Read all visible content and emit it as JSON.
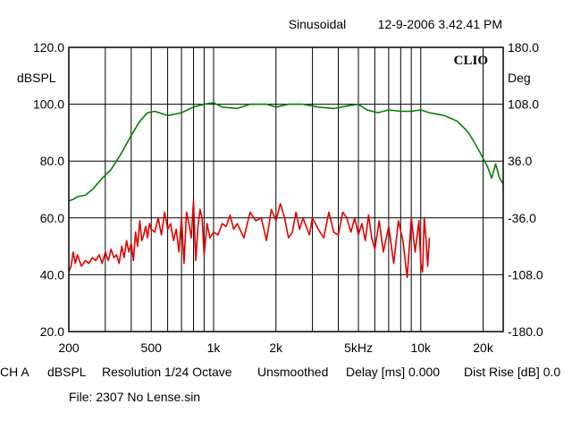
{
  "header": {
    "mode": "Sinusoidal",
    "timestamp": "12-9-2006 3.42.41 PM"
  },
  "chart_data": {
    "type": "line",
    "brand": "CLIO",
    "left_axis": {
      "unit": "dBSPL",
      "ylim": [
        20,
        120
      ],
      "ticks": [
        "120.0",
        "100.0",
        "80.0",
        "60.0",
        "40.0",
        "20.0"
      ],
      "tick_values": [
        120,
        100,
        80,
        60,
        40,
        20
      ]
    },
    "right_axis": {
      "unit": "Deg",
      "ylim": [
        -180,
        180
      ],
      "ticks": [
        "180.0",
        "108.0",
        "36.0",
        "-36.0",
        "-108.0",
        "-180.0"
      ],
      "tick_values": [
        180,
        108,
        36,
        -36,
        -108,
        -180
      ]
    },
    "x_axis": {
      "scale": "log",
      "xlim": [
        200,
        25000
      ],
      "tick_labels": [
        "200",
        "500",
        "1k",
        "2k",
        "5kHz",
        "10k",
        "20k"
      ],
      "tick_values": [
        200,
        500,
        1000,
        2000,
        5000,
        10000,
        20000
      ]
    },
    "grid": true,
    "series": [
      {
        "color": "#008000",
        "x": [
          200,
          210,
          220,
          240,
          260,
          290,
          320,
          360,
          400,
          440,
          480,
          520,
          600,
          700,
          800,
          900,
          1000,
          1100,
          1300,
          1500,
          1800,
          2000,
          2300,
          2700,
          3200,
          3800,
          4500,
          5000,
          5500,
          6200,
          7000,
          8000,
          9000,
          10000,
          11000,
          12000,
          13000,
          14000,
          15000,
          16000,
          17000,
          18000,
          19000,
          20000,
          21000,
          22000,
          23000,
          24000,
          25000
        ],
        "y": [
          66,
          66.5,
          67.5,
          68,
          70,
          74,
          77,
          83,
          89,
          94,
          97,
          97.5,
          96,
          97,
          99,
          100,
          100.5,
          99,
          98.5,
          100,
          100,
          99,
          100,
          100,
          99,
          98.5,
          99.5,
          100,
          98,
          97,
          98,
          97.5,
          97.5,
          98,
          97,
          96.5,
          96,
          95,
          94,
          92,
          90,
          87,
          84,
          81,
          78,
          74,
          79,
          74,
          72
        ]
      },
      {
        "color": "#e00000",
        "x": [
          200,
          205,
          210,
          215,
          220,
          230,
          240,
          250,
          260,
          270,
          280,
          290,
          300,
          310,
          320,
          330,
          340,
          350,
          360,
          370,
          380,
          390,
          400,
          410,
          420,
          430,
          440,
          450,
          460,
          470,
          480,
          490,
          500,
          520,
          540,
          560,
          580,
          600,
          620,
          640,
          660,
          680,
          700,
          720,
          740,
          760,
          780,
          800,
          820,
          840,
          860,
          880,
          900,
          930,
          960,
          1000,
          1050,
          1100,
          1150,
          1200,
          1250,
          1300,
          1400,
          1500,
          1600,
          1700,
          1800,
          1900,
          2000,
          2100,
          2200,
          2300,
          2400,
          2500,
          2600,
          2700,
          2800,
          2900,
          3000,
          3200,
          3400,
          3600,
          3800,
          4000,
          4200,
          4400,
          4600,
          4800,
          5000,
          5200,
          5400,
          5600,
          5800,
          6000,
          6300,
          6600,
          7000,
          7400,
          7800,
          8200,
          8600,
          9000,
          9400,
          9800,
          10000,
          10200,
          10400,
          10600,
          10800,
          11000
        ],
        "y": [
          41,
          43,
          48,
          44,
          47,
          43,
          45,
          44,
          46,
          45,
          47,
          44,
          48,
          45,
          49,
          46,
          47,
          44,
          50,
          46,
          52,
          48,
          51,
          45,
          55,
          50,
          59,
          52,
          54,
          57,
          53,
          58,
          56,
          55,
          60,
          54,
          62,
          56,
          58,
          52,
          56,
          48,
          60,
          44,
          62,
          58,
          53,
          66,
          45,
          57,
          63,
          60,
          47,
          58,
          53,
          55,
          54,
          58,
          57,
          61,
          56,
          58,
          53,
          62,
          59,
          60,
          52,
          63,
          59,
          65,
          60,
          53,
          55,
          62,
          56,
          60,
          57,
          54,
          60,
          56,
          53,
          62,
          55,
          54,
          62,
          60,
          55,
          60,
          54,
          58,
          52,
          61,
          53,
          49,
          59,
          48,
          57,
          44,
          59,
          52,
          39,
          60,
          48,
          59,
          44,
          41,
          60,
          53,
          43,
          53
        ]
      }
    ]
  },
  "footer": {
    "channel": "CH A",
    "unit": "dBSPL",
    "resolution": "Resolution 1/24 Octave",
    "smoothing": "Unsmoothed",
    "delay": "Delay [ms] 0.000",
    "dist_rise": "Dist Rise [dB] 0.0",
    "file": "File: 2307 No Lense.sin"
  }
}
